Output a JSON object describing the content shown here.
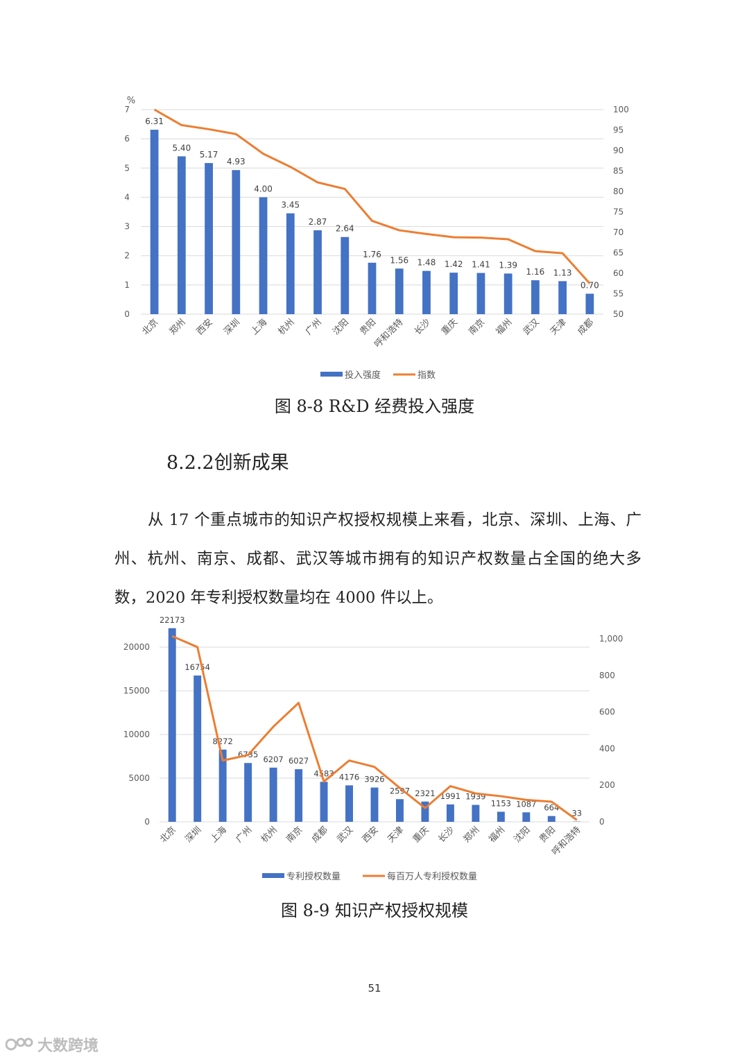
{
  "chart_data": [
    {
      "type": "bar",
      "id": "rd-intensity",
      "categories": [
        "北京",
        "郑州",
        "西安",
        "深圳",
        "上海",
        "杭州",
        "广州",
        "沈阳",
        "贵阳",
        "呼和浩特",
        "长沙",
        "重庆",
        "南京",
        "福州",
        "武汉",
        "天津",
        "成都"
      ],
      "series": [
        {
          "name": "投入强度",
          "type": "bar",
          "axis": "left",
          "color": "#4472C4",
          "values": [
            6.31,
            5.4,
            5.17,
            4.93,
            4.0,
            3.45,
            2.87,
            2.64,
            1.76,
            1.56,
            1.48,
            1.42,
            1.41,
            1.39,
            1.16,
            1.13,
            0.7
          ],
          "labels": [
            "6.31",
            "5.40",
            "5.17",
            "4.93",
            "4.00",
            "3.45",
            "2.87",
            "2.64",
            "1.76",
            "1.56",
            "1.48",
            "1.42",
            "1.41",
            "1.39",
            "1.16",
            "1.13",
            "0.70"
          ]
        },
        {
          "name": "指数",
          "type": "line",
          "axis": "right",
          "color": "#ED7D31",
          "values": [
            100,
            96.2,
            95.2,
            94.0,
            89.2,
            86.0,
            82.2,
            80.6,
            72.8,
            70.5,
            69.6,
            68.8,
            68.7,
            68.3,
            65.4,
            64.9,
            57.5
          ]
        }
      ],
      "y_left": {
        "min": 0,
        "max": 7,
        "ticks": [
          "0",
          "1",
          "2",
          "3",
          "4",
          "5",
          "6",
          "7"
        ],
        "unit": "%"
      },
      "y_right": {
        "min": 50,
        "max": 100,
        "ticks": [
          "50",
          "55",
          "60",
          "65",
          "70",
          "75",
          "80",
          "85",
          "90",
          "95",
          "100"
        ]
      },
      "grid": true,
      "legend_position": "bottom"
    },
    {
      "type": "bar",
      "id": "ip-scale",
      "categories": [
        "北京",
        "深圳",
        "上海",
        "广州",
        "杭州",
        "南京",
        "成都",
        "武汉",
        "西安",
        "天津",
        "重庆",
        "长沙",
        "郑州",
        "福州",
        "沈阳",
        "贵阳",
        "呼和浩特"
      ],
      "series": [
        {
          "name": "专利授权数量",
          "type": "bar",
          "axis": "left",
          "color": "#4472C4",
          "values": [
            22173,
            16754,
            8272,
            6735,
            6207,
            6027,
            4583,
            4176,
            3926,
            2597,
            2321,
            1991,
            1939,
            1153,
            1087,
            664,
            33
          ],
          "labels": [
            "22173",
            "16754",
            "8272",
            "6735",
            "6207",
            "6027",
            "4583",
            "4176",
            "3926",
            "2597",
            "2321",
            "1991",
            "1939",
            "1153",
            "1087",
            "664",
            "33"
          ]
        },
        {
          "name": "每百万人专利授权数量",
          "type": "line",
          "axis": "right",
          "color": "#ED7D31",
          "values": [
            1015,
            955,
            335,
            365,
            520,
            650,
            220,
            335,
            300,
            185,
            75,
            195,
            155,
            140,
            120,
            110,
            10
          ]
        }
      ],
      "y_left": {
        "min": 0,
        "max": 22000,
        "ticks": [
          "0",
          "5000",
          "10000",
          "15000",
          "20000"
        ],
        "tick_values": [
          0,
          5000,
          10000,
          15000,
          20000
        ]
      },
      "y_right": {
        "min": 0,
        "max": 1050,
        "ticks": [
          "0",
          "200",
          "400",
          "600",
          "800",
          "1,000"
        ],
        "tick_values": [
          0,
          200,
          400,
          600,
          800,
          1000
        ]
      },
      "grid": true,
      "legend_position": "bottom"
    }
  ],
  "captions": {
    "fig1": "图 8-8 R&D 经费投入强度",
    "fig2": "图 8-9 知识产权授权规模"
  },
  "section": {
    "heading": "8.2.2创新成果",
    "paragraph": "从 17 个重点城市的知识产权授权规模上来看，北京、深圳、上海、广州、杭州、南京、成都、武汉等城市拥有的知识产权数量占全国的绝大多数，2020 年专利授权数量均在 4000 件以上。"
  },
  "page_number": "51",
  "watermark": {
    "text": "大数跨境",
    "icon": "brand-logo-icon"
  }
}
